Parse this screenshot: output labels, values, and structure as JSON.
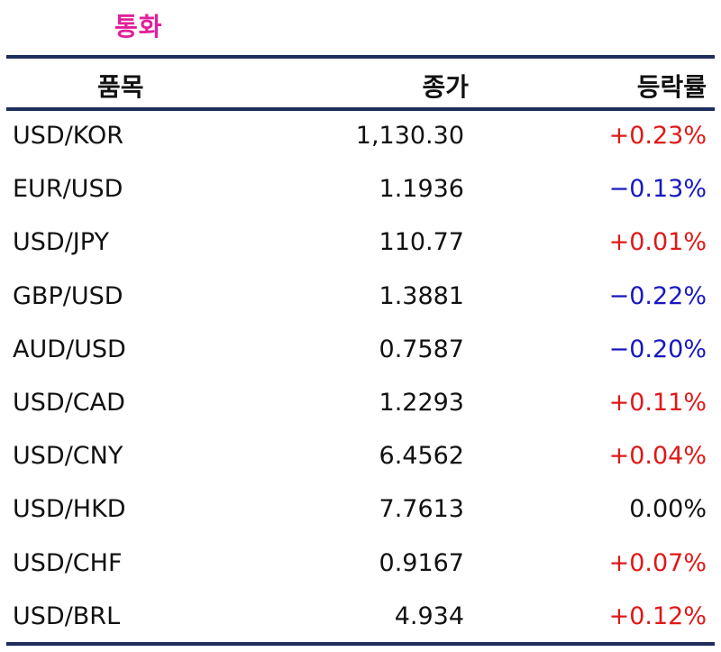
{
  "title": "통화",
  "headers": {
    "item": "품목",
    "close": "종가",
    "change": "등락률"
  },
  "colors": {
    "title": "#e0209a",
    "rule": "#1f2d5c",
    "up": "#e01818",
    "down": "#1818c0",
    "flat": "#111111"
  },
  "rows": [
    {
      "item": "USD/KOR",
      "close": "1,130.30",
      "change": "+0.23%",
      "direction": "up"
    },
    {
      "item": "EUR/USD",
      "close": "1.1936",
      "change": "−0.13%",
      "direction": "down"
    },
    {
      "item": "USD/JPY",
      "close": "110.77",
      "change": "+0.01%",
      "direction": "up"
    },
    {
      "item": "GBP/USD",
      "close": "1.3881",
      "change": "−0.22%",
      "direction": "down"
    },
    {
      "item": "AUD/USD",
      "close": "0.7587",
      "change": "−0.20%",
      "direction": "down"
    },
    {
      "item": "USD/CAD",
      "close": "1.2293",
      "change": "+0.11%",
      "direction": "up"
    },
    {
      "item": "USD/CNY",
      "close": "6.4562",
      "change": "+0.04%",
      "direction": "up"
    },
    {
      "item": "USD/HKD",
      "close": "7.7613",
      "change": "0.00%",
      "direction": "flat"
    },
    {
      "item": "USD/CHF",
      "close": "0.9167",
      "change": "+0.07%",
      "direction": "up"
    },
    {
      "item": "USD/BRL",
      "close": "4.934",
      "change": "+0.12%",
      "direction": "up"
    }
  ]
}
